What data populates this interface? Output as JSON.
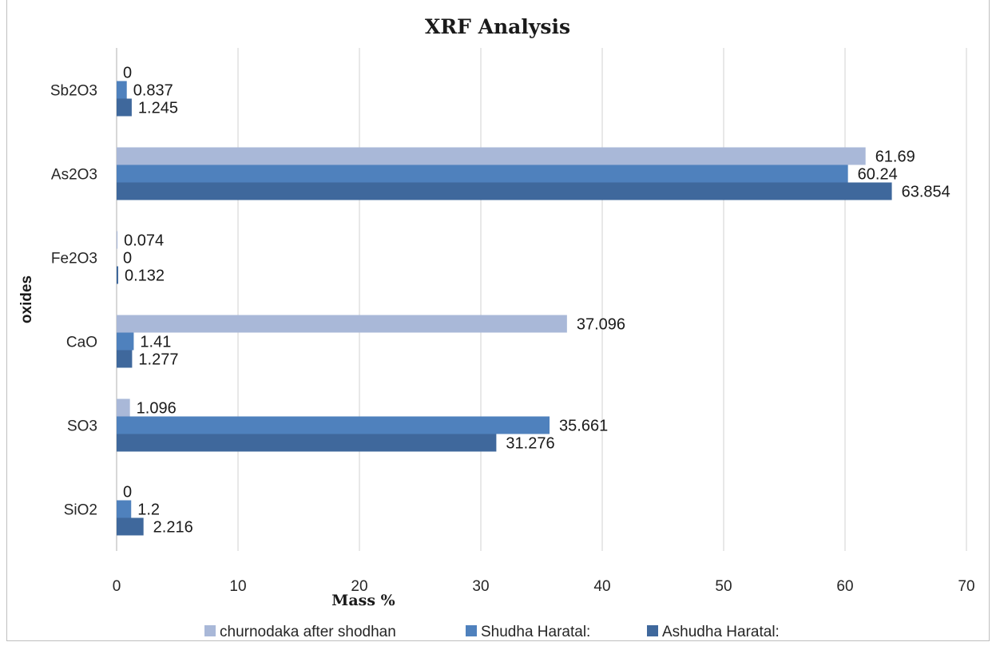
{
  "chart_data": {
    "type": "bar",
    "orientation": "horizontal",
    "title": "XRF Analysis",
    "xlabel": "Mass %",
    "ylabel": "oxides",
    "categories": [
      "Sb2O3",
      "As2O3",
      "Fe2O3",
      "CaO",
      "SO3",
      "SiO2"
    ],
    "series": [
      {
        "name": "churnodaka after shodhan",
        "color": "#a9b8d8",
        "values": [
          0,
          61.69,
          0.074,
          37.096,
          1.096,
          0
        ],
        "labels": [
          "0",
          "61.69",
          "0.074",
          "37.096",
          "1.096",
          "0"
        ]
      },
      {
        "name": "Shudha Haratal:",
        "color": "#4f81bd",
        "values": [
          0.837,
          60.24,
          0,
          1.41,
          35.661,
          1.2
        ],
        "labels": [
          "0.837",
          "60.24",
          "0",
          "1.41",
          "35.661",
          "1.2"
        ]
      },
      {
        "name": "Ashudha Haratal:",
        "color": "#3f689c",
        "values": [
          1.245,
          63.854,
          0.132,
          1.277,
          31.276,
          2.216
        ],
        "labels": [
          "1.245",
          "63.854",
          "0.132",
          "1.277",
          "31.276",
          "2.216"
        ]
      }
    ],
    "xlim": [
      0,
      70
    ],
    "xticks": [
      0,
      10,
      20,
      30,
      40,
      50,
      60,
      70
    ],
    "grid": true,
    "legend_position": "bottom"
  }
}
